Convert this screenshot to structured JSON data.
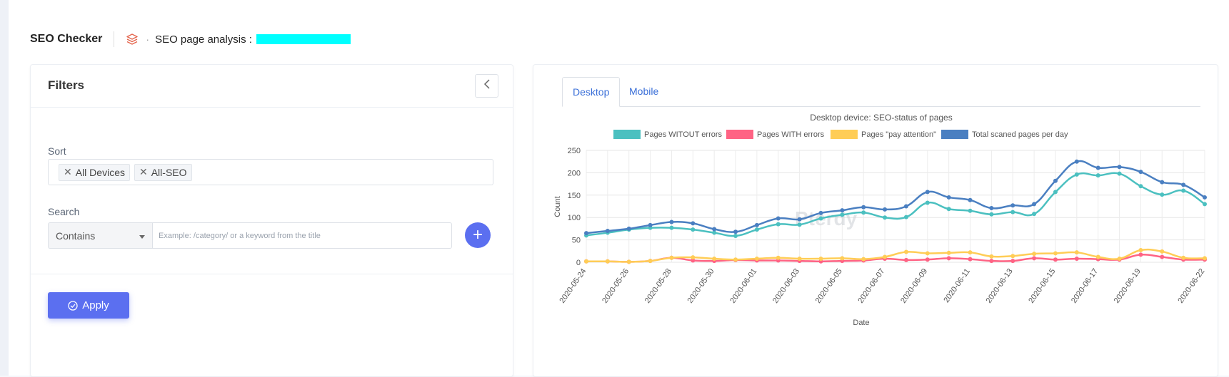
{
  "header": {
    "app_title": "SEO Checker",
    "breadcrumb_dot": "·",
    "page_analysis_label": "SEO page analysis :"
  },
  "filters": {
    "title": "Filters",
    "sort_label": "Sort",
    "sort_chips": [
      "All Devices",
      "All-SEO"
    ],
    "search_label": "Search",
    "search_mode": "Contains",
    "search_placeholder": "Example: /category/ or a keyword from the title",
    "add_label": "+",
    "apply_label": "Apply"
  },
  "tabs": {
    "desktop": "Desktop",
    "mobile": "Mobile"
  },
  "watermark": "Pterdy",
  "colors": {
    "accent": "#5b6ff0",
    "tab_text": "#3a6fd8",
    "without_errors": "#4bc0c0",
    "with_errors": "#ff6384",
    "pay_attention": "#ffcd56",
    "total": "#4a7fc1"
  },
  "chart_data": {
    "type": "line",
    "title": "Desktop device: SEO-status of pages",
    "xlabel": "Date",
    "ylabel": "Count",
    "ylim": [
      0,
      250
    ],
    "yticks": [
      0,
      50,
      100,
      150,
      200,
      250
    ],
    "grid": true,
    "legend_position": "top",
    "x": [
      "2020-05-24",
      "2020-05-25",
      "2020-05-26",
      "2020-05-27",
      "2020-05-28",
      "2020-05-29",
      "2020-05-30",
      "2020-05-31",
      "2020-06-01",
      "2020-06-02",
      "2020-06-03",
      "2020-06-04",
      "2020-06-05",
      "2020-06-06",
      "2020-06-07",
      "2020-06-08",
      "2020-06-09",
      "2020-06-10",
      "2020-06-11",
      "2020-06-12",
      "2020-06-13",
      "2020-06-14",
      "2020-06-15",
      "2020-06-16",
      "2020-06-17",
      "2020-06-18",
      "2020-06-19",
      "2020-06-20",
      "2020-06-21",
      "2020-06-22"
    ],
    "xticks": [
      "2020-05-24",
      "2020-05-26",
      "2020-05-28",
      "2020-05-30",
      "2020-06-01",
      "2020-06-03",
      "2020-06-05",
      "2020-06-07",
      "2020-06-09",
      "2020-06-11",
      "2020-06-13",
      "2020-06-15",
      "2020-06-17",
      "2020-06-19",
      "2020-06-22"
    ],
    "series": [
      {
        "name": "Pages WITOUT errors",
        "values": [
          60,
          66,
          73,
          77,
          77,
          73,
          66,
          59,
          73,
          85,
          84,
          98,
          106,
          111,
          100,
          101,
          133,
          119,
          115,
          107,
          112,
          108,
          157,
          196,
          194,
          198,
          170,
          151,
          160,
          130
        ]
      },
      {
        "name": "Pages WITH errors",
        "values": [
          2,
          2,
          1,
          3,
          10,
          4,
          3,
          5,
          4,
          4,
          3,
          2,
          3,
          4,
          8,
          5,
          6,
          9,
          7,
          3,
          3,
          9,
          6,
          8,
          7,
          6,
          17,
          12,
          6,
          6
        ]
      },
      {
        "name": "Pages \"pay attention\"",
        "values": [
          2,
          2,
          1,
          3,
          10,
          11,
          8,
          6,
          8,
          10,
          8,
          8,
          9,
          7,
          12,
          23,
          20,
          21,
          22,
          13,
          14,
          19,
          20,
          22,
          12,
          8,
          27,
          24,
          10,
          9
        ]
      },
      {
        "name": "Total scaned pages per day",
        "values": [
          65,
          70,
          75,
          83,
          90,
          87,
          74,
          68,
          83,
          98,
          96,
          110,
          116,
          123,
          118,
          125,
          157,
          145,
          139,
          121,
          127,
          130,
          182,
          225,
          211,
          213,
          202,
          179,
          173,
          145
        ]
      }
    ]
  }
}
